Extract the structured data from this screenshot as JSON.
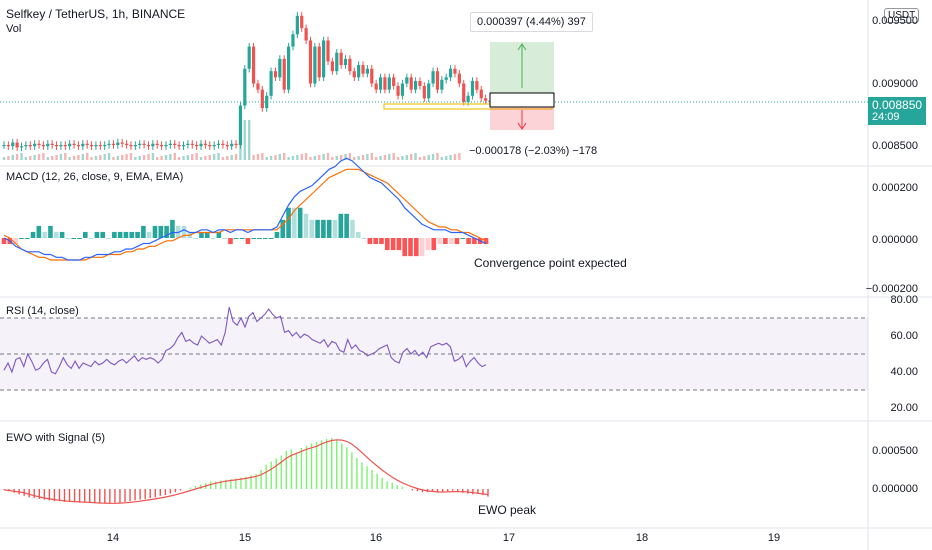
{
  "header": {
    "symbol_line": "Selfkey / TetherUS, 1h, BINANCE",
    "volume_label": "Vol"
  },
  "currency_button": "USDT",
  "price_axis": {
    "labels": [
      "0.009500",
      "0.009000",
      "0.008500"
    ]
  },
  "last_price": {
    "value": "0.008850",
    "countdown": "24:09"
  },
  "position_tool": {
    "target_label": "0.000397 (4.44%) 397",
    "stop_label": "−0.000178 (−2.03%) −178"
  },
  "macd": {
    "title": "MACD (12, 26, close, 9, EMA, EMA)",
    "axis_labels": [
      "0.000200",
      "0.000000",
      "−0.000200"
    ],
    "annotation": "Convergence point expected"
  },
  "rsi": {
    "title": "RSI (14, close)",
    "axis_labels": [
      "80.00",
      "60.00",
      "40.00",
      "20.00"
    ]
  },
  "ewo": {
    "title": "EWO with Signal (5)",
    "axis_labels": [
      "0.000500",
      "0.000000"
    ],
    "annotation": "EWO peak"
  },
  "time_axis": {
    "labels": [
      "14",
      "15",
      "16",
      "17",
      "18",
      "19"
    ]
  },
  "colors": {
    "up": "#26a69a",
    "down": "#ef5350",
    "macd_line": "#2962ff",
    "signal_line": "#ff6d00",
    "rsi_line": "#7e57c2",
    "ewo_up": "#7cf26f",
    "ewo_down": "#ef5350"
  },
  "chart_data": {
    "type": "candlestick",
    "price_axis_ticks": [
      0.0095,
      0.009,
      0.0085
    ],
    "time_ticks": [
      "14",
      "15",
      "16",
      "17",
      "18",
      "19"
    ],
    "price_close": [
      0.0085,
      0.00849,
      0.00852,
      0.00848,
      0.00849,
      0.0085,
      0.00849,
      0.00851,
      0.0085,
      0.00849,
      0.00851,
      0.0085,
      0.00849,
      0.0085,
      0.00849,
      0.00851,
      0.0085,
      0.00849,
      0.00851,
      0.0085,
      0.00849,
      0.0085,
      0.00849,
      0.0085,
      0.00851,
      0.0085,
      0.00852,
      0.00851,
      0.0085,
      0.00849,
      0.0085,
      0.00851,
      0.0085,
      0.00849,
      0.00851,
      0.0085,
      0.00849,
      0.0085,
      0.00851,
      0.0085,
      0.00849,
      0.0085,
      0.00851,
      0.0085,
      0.00849,
      0.00851,
      0.0085,
      0.00849,
      0.0085,
      0.00851,
      0.0085,
      0.00849,
      0.00851,
      0.0085,
      0.00882,
      0.00912,
      0.0093,
      0.009,
      0.00895,
      0.0088,
      0.0089,
      0.0091,
      0.00905,
      0.0092,
      0.00895,
      0.0093,
      0.0094,
      0.00955,
      0.00945,
      0.00935,
      0.009,
      0.0093,
      0.00905,
      0.00935,
      0.00918,
      0.0091,
      0.00925,
      0.00915,
      0.0092,
      0.0091,
      0.00905,
      0.00915,
      0.00908,
      0.00912,
      0.009,
      0.00895,
      0.00905,
      0.00895,
      0.00905,
      0.00898,
      0.0089,
      0.009,
      0.00905,
      0.00895,
      0.00902,
      0.00898,
      0.00888,
      0.009,
      0.0091,
      0.00895,
      0.00903,
      0.00905,
      0.00912,
      0.00908,
      0.009,
      0.00885,
      0.0089,
      0.00902,
      0.00895,
      0.00888,
      0.00886,
      0.00885
    ],
    "macd_axis_ticks": [
      0.0002,
      0.0,
      -0.0002
    ],
    "macd_line": [
      0.0,
      -1e-05,
      -3e-05,
      -4e-05,
      -5e-05,
      -5e-05,
      -5e-05,
      -6e-05,
      -6e-05,
      -7e-05,
      -7e-05,
      -8e-05,
      -8e-05,
      -8e-05,
      -7e-05,
      -7e-05,
      -6e-05,
      -6e-05,
      -6e-05,
      -5e-05,
      -5e-05,
      -4e-05,
      -4e-05,
      -3e-05,
      -2e-05,
      -2e-05,
      -1e-05,
      0.0,
      1e-05,
      2e-05,
      2e-05,
      3e-05,
      2e-05,
      2e-05,
      3e-05,
      3e-05,
      2e-05,
      3e-05,
      3e-05,
      2e-05,
      3e-05,
      3e-05,
      2e-05,
      3e-05,
      3e-05,
      3e-05,
      3e-05,
      4e-05,
      8e-05,
      0.00012,
      0.00015,
      0.00017,
      0.00018,
      0.00019,
      0.00021,
      0.00023,
      0.00025,
      0.00026,
      0.00028,
      0.00029,
      0.00028,
      0.00026,
      0.00024,
      0.00022,
      0.00021,
      0.0002,
      0.00018,
      0.00016,
      0.00014,
      0.00011,
      9e-05,
      7e-05,
      5e-05,
      4e-05,
      3e-05,
      3e-05,
      3e-05,
      2e-05,
      2e-05,
      2e-05,
      1e-05,
      0.0,
      -1e-05,
      -2e-05
    ],
    "macd_signal": [
      1e-05,
      0.0,
      -2e-05,
      -4e-05,
      -5e-05,
      -6e-05,
      -7e-05,
      -7e-05,
      -8e-05,
      -8e-05,
      -8e-05,
      -8e-05,
      -8e-05,
      -8e-05,
      -8e-05,
      -7e-05,
      -7e-05,
      -7e-05,
      -6e-05,
      -6e-05,
      -6e-05,
      -5e-05,
      -5e-05,
      -4e-05,
      -4e-05,
      -3e-05,
      -3e-05,
      -2e-05,
      -1e-05,
      -1e-05,
      0.0,
      1e-05,
      1e-05,
      2e-05,
      2e-05,
      2e-05,
      2e-05,
      2e-05,
      3e-05,
      3e-05,
      3e-05,
      3e-05,
      3e-05,
      3e-05,
      3e-05,
      3e-05,
      3e-05,
      3e-05,
      5e-05,
      7e-05,
      0.0001,
      0.00012,
      0.00014,
      0.00016,
      0.00018,
      0.0002,
      0.00022,
      0.00023,
      0.00024,
      0.00025,
      0.00025,
      0.00025,
      0.00024,
      0.00023,
      0.00022,
      0.00021,
      0.0002,
      0.00018,
      0.00016,
      0.00014,
      0.00012,
      0.0001,
      8e-05,
      6e-05,
      5e-05,
      4e-05,
      4e-05,
      3e-05,
      3e-05,
      2e-05,
      2e-05,
      1e-05,
      0.0,
      -1e-05
    ],
    "rsi_axis_ticks": [
      80,
      60,
      40,
      20
    ],
    "rsi_levels": [
      70,
      50,
      30
    ],
    "rsi": [
      41,
      45,
      40,
      47,
      48,
      43,
      50,
      46,
      41,
      42,
      45,
      47,
      40,
      39,
      43,
      48,
      44,
      42,
      46,
      42,
      45,
      44,
      43,
      46,
      44,
      45,
      47,
      45,
      44,
      46,
      47,
      45,
      47,
      49,
      46,
      48,
      47,
      48,
      47,
      45,
      47,
      52,
      53,
      55,
      59,
      62,
      57,
      58,
      56,
      55,
      60,
      58,
      56,
      57,
      58,
      55,
      62,
      76,
      68,
      66,
      70,
      65,
      71,
      73,
      68,
      70,
      72,
      75,
      72,
      70,
      71,
      62,
      63,
      60,
      62,
      59,
      61,
      60,
      58,
      57,
      56,
      58,
      54,
      57,
      56,
      52,
      51,
      58,
      53,
      55,
      52,
      51,
      49,
      50,
      51,
      53,
      54,
      55,
      48,
      46,
      45,
      51,
      53,
      50,
      52,
      49,
      51,
      48,
      54,
      55,
      56,
      55,
      56,
      54,
      46,
      47,
      49,
      43,
      46,
      48,
      45,
      43,
      44
    ],
    "ewo_axis_ticks": [
      0.0005,
      0.0
    ],
    "ewo": [
      -1e-05,
      -3e-05,
      -5e-05,
      -7e-05,
      -9e-05,
      -0.00011,
      -0.00012,
      -0.00013,
      -0.00014,
      -0.00015,
      -0.00016,
      -0.00016,
      -0.00017,
      -0.00017,
      -0.00017,
      -0.00018,
      -0.00018,
      -0.00018,
      -0.00019,
      -0.00019,
      -0.00019,
      -0.00019,
      -0.00018,
      -0.00018,
      -0.00017,
      -0.00016,
      -0.00015,
      -0.00014,
      -0.00013,
      -0.00012,
      -0.00011,
      -9e-05,
      -8e-05,
      -6e-05,
      -4e-05,
      -2e-05,
      0.0,
      2e-05,
      4e-05,
      6e-05,
      8e-05,
      0.0001,
      0.0001,
      0.00011,
      0.00012,
      0.00013,
      0.00014,
      0.00015,
      0.00016,
      0.00018,
      0.0002,
      0.00025,
      0.00032,
      0.00036,
      0.0004,
      0.00044,
      0.0005,
      0.00052,
      0.00048,
      0.00054,
      0.00057,
      0.0006,
      0.00062,
      0.00064,
      0.00066,
      0.00067,
      0.00065,
      0.0006,
      0.00055,
      0.00048,
      0.00041,
      0.00035,
      0.0003,
      0.00025,
      0.0002,
      0.00015,
      0.0001,
      8e-05,
      5e-05,
      3e-05,
      0.0,
      -2e-05,
      -3e-05,
      -4e-05,
      -4e-05,
      -3e-05,
      -5e-05,
      -4e-05,
      -3e-05,
      -2e-05,
      -4e-05,
      -5e-05,
      -6e-05,
      -7e-05,
      -6e-05,
      -8e-05,
      -0.0001
    ]
  }
}
